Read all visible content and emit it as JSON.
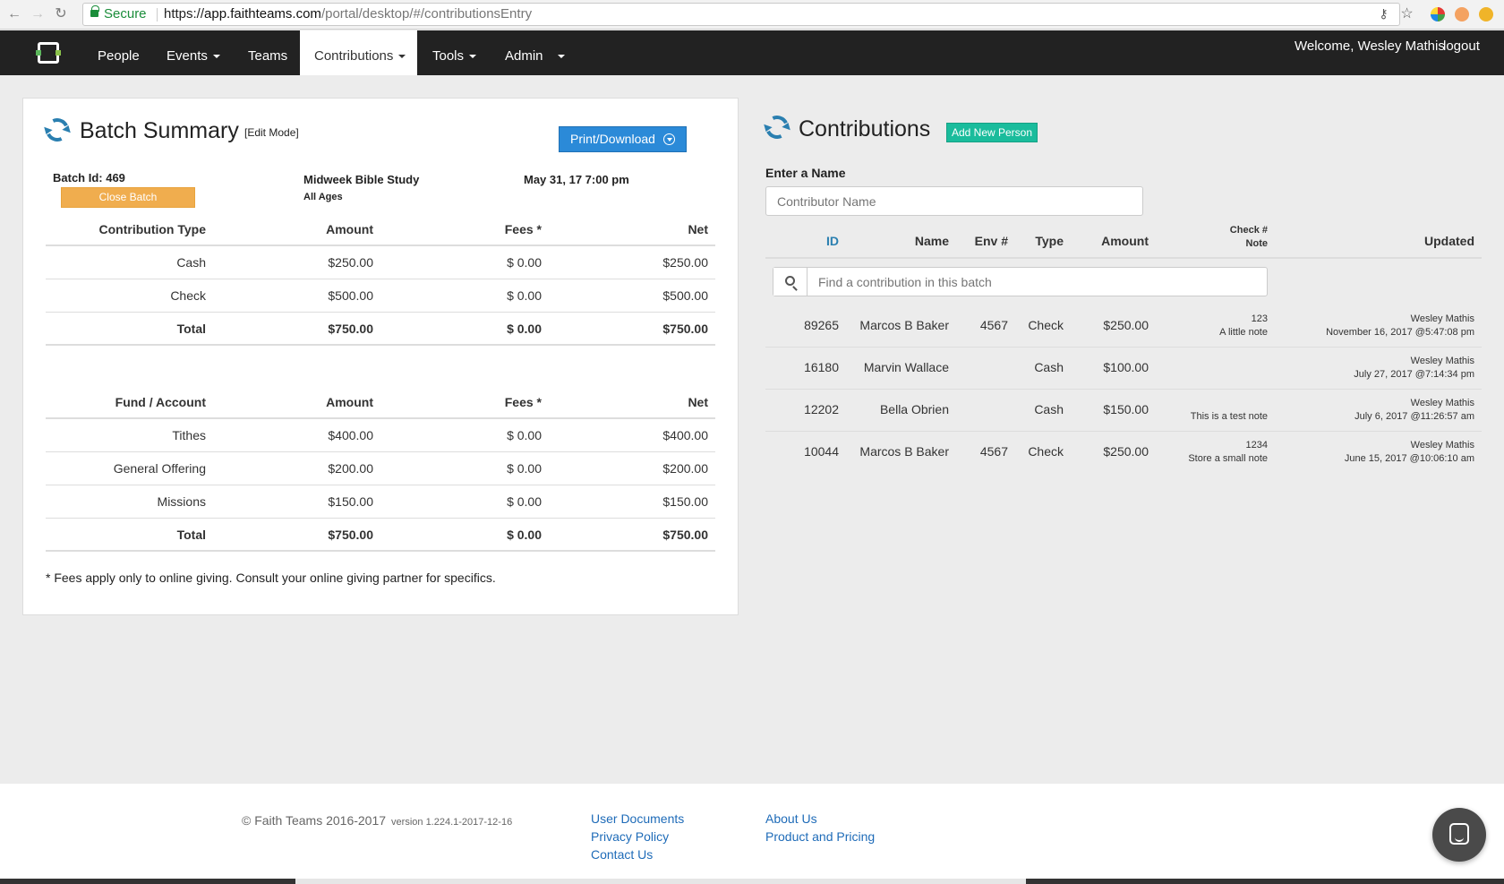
{
  "browser": {
    "secure_label": "Secure",
    "url_scheme": "https://",
    "url_host": "app.faithteams.com",
    "url_path": "/portal/desktop/#/contributionsEntry"
  },
  "nav": {
    "people": "People",
    "events": "Events",
    "teams": "Teams",
    "contributions": "Contributions",
    "tools": "Tools",
    "admin": "Admin",
    "welcome": "Welcome, Wesley Mathis",
    "logout": "logout"
  },
  "batch": {
    "title": "Batch Summary",
    "edit_mode": "[Edit Mode]",
    "print_label": "Print/Download",
    "batch_id_label": "Batch Id: 469",
    "close_batch_label": "Close Batch",
    "event_name": "Midweek Bible Study",
    "event_group": "All Ages",
    "event_date": "May 31, 17 7:00 pm",
    "type_table": {
      "headers": [
        "Contribution Type",
        "Amount",
        "Fees *",
        "Net"
      ],
      "rows": [
        [
          "Cash",
          "$250.00",
          "$ 0.00",
          "$250.00"
        ],
        [
          "Check",
          "$500.00",
          "$ 0.00",
          "$500.00"
        ]
      ],
      "total": [
        "Total",
        "$750.00",
        "$ 0.00",
        "$750.00"
      ]
    },
    "fund_table": {
      "headers": [
        "Fund / Account",
        "Amount",
        "Fees *",
        "Net"
      ],
      "rows": [
        [
          "Tithes",
          "$400.00",
          "$ 0.00",
          "$400.00"
        ],
        [
          "General Offering",
          "$200.00",
          "$ 0.00",
          "$200.00"
        ],
        [
          "Missions",
          "$150.00",
          "$ 0.00",
          "$150.00"
        ]
      ],
      "total": [
        "Total",
        "$750.00",
        "$ 0.00",
        "$750.00"
      ]
    },
    "footnote": "* Fees apply only to online giving. Consult your online giving partner for specifics."
  },
  "contributions": {
    "title": "Contributions",
    "add_new_person": "Add New Person",
    "enter_name_label": "Enter a Name",
    "contributor_placeholder": "Contributor Name",
    "find_placeholder": "Find a contribution in this batch",
    "headers": {
      "id": "ID",
      "name": "Name",
      "env": "Env #",
      "type": "Type",
      "amount": "Amount",
      "check": "Check #",
      "note": "Note",
      "updated": "Updated"
    },
    "rows": [
      {
        "id": "89265",
        "name": "Marcos B Baker",
        "env": "4567",
        "type": "Check",
        "amount": "$250.00",
        "check": "123",
        "note": "A little note",
        "updated_by": "Wesley Mathis",
        "updated_at": "November 16, 2017 @5:47:08 pm"
      },
      {
        "id": "16180",
        "name": "Marvin Wallace",
        "env": "",
        "type": "Cash",
        "amount": "$100.00",
        "check": "",
        "note": "",
        "updated_by": "Wesley Mathis",
        "updated_at": "July 27, 2017 @7:14:34 pm"
      },
      {
        "id": "12202",
        "name": "Bella Obrien",
        "env": "",
        "type": "Cash",
        "amount": "$150.00",
        "check": "",
        "note": "This is a test note",
        "updated_by": "Wesley Mathis",
        "updated_at": "July 6, 2017 @11:26:57 am"
      },
      {
        "id": "10044",
        "name": "Marcos B Baker",
        "env": "4567",
        "type": "Check",
        "amount": "$250.00",
        "check": "1234",
        "note": "Store a small note",
        "updated_by": "Wesley Mathis",
        "updated_at": "June 15, 2017 @10:06:10 am"
      }
    ]
  },
  "footer": {
    "copyright": "© Faith Teams 2016-2017",
    "version": "version 1.224.1-2017-12-16",
    "user_documents": "User Documents",
    "privacy_policy": "Privacy Policy",
    "contact_us": "Contact Us",
    "about_us": "About Us",
    "product_pricing": "Product and Pricing"
  },
  "colors": {
    "navbar": "#222222",
    "print_button": "#2b8ad8",
    "close_batch_button": "#f0ad4e",
    "add_person_button": "#1abc9c",
    "link": "#1e6bb8",
    "refresh_icon": "#2a7fb0"
  }
}
